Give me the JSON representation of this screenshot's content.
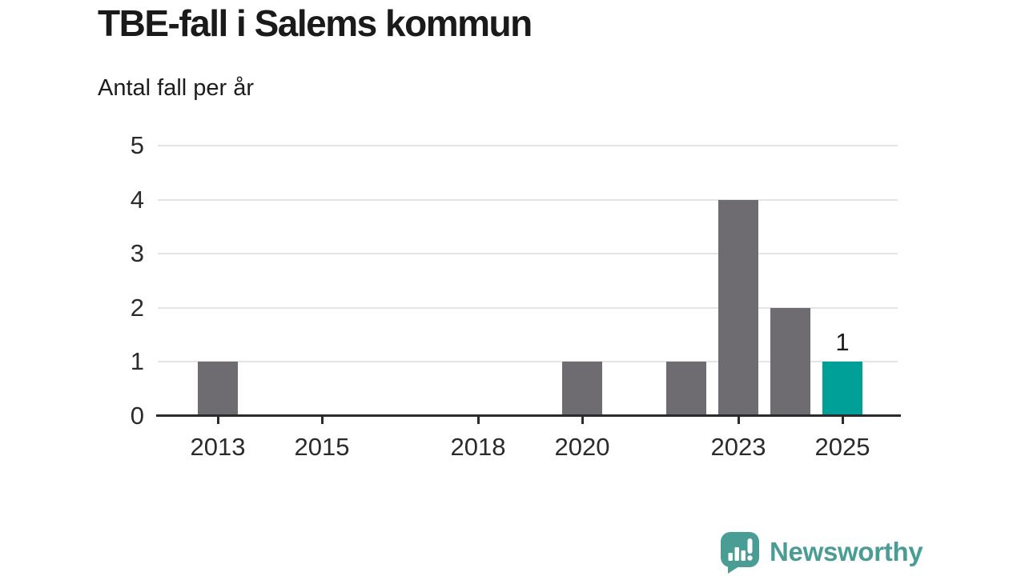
{
  "header": {
    "title": "TBE-fall i Salems kommun",
    "subtitle": "Antal fall per år"
  },
  "chart_data": {
    "type": "bar",
    "title": "TBE-fall i Salems kommun",
    "subtitle": "Antal fall per år",
    "xlabel": "",
    "ylabel": "Antal fall per år",
    "ylim": [
      0,
      5
    ],
    "y_ticks": [
      0,
      1,
      2,
      3,
      4,
      5
    ],
    "x_ticks": [
      2013,
      2015,
      2018,
      2020,
      2023,
      2025
    ],
    "x_domain": [
      2011.8,
      2026.2
    ],
    "grid": "horizontal",
    "legend": "none",
    "bars": [
      {
        "year": 2013,
        "value": 1
      },
      {
        "year": 2020,
        "value": 1
      },
      {
        "year": 2022,
        "value": 1
      },
      {
        "year": 2023,
        "value": 4
      },
      {
        "year": 2024,
        "value": 2
      },
      {
        "year": 2025,
        "value": 1,
        "highlight": true,
        "label": "1"
      }
    ],
    "colors": {
      "bar": "#6e6c70",
      "highlight": "#00a098",
      "grid": "#e4e4e4",
      "axis": "#2b2b2b",
      "text": "#1a1a1a"
    }
  },
  "branding": {
    "name": "Newsworthy",
    "icon": "newsworthy-speech-bubble-bar-chart-icon",
    "color": "#4a9d94"
  }
}
